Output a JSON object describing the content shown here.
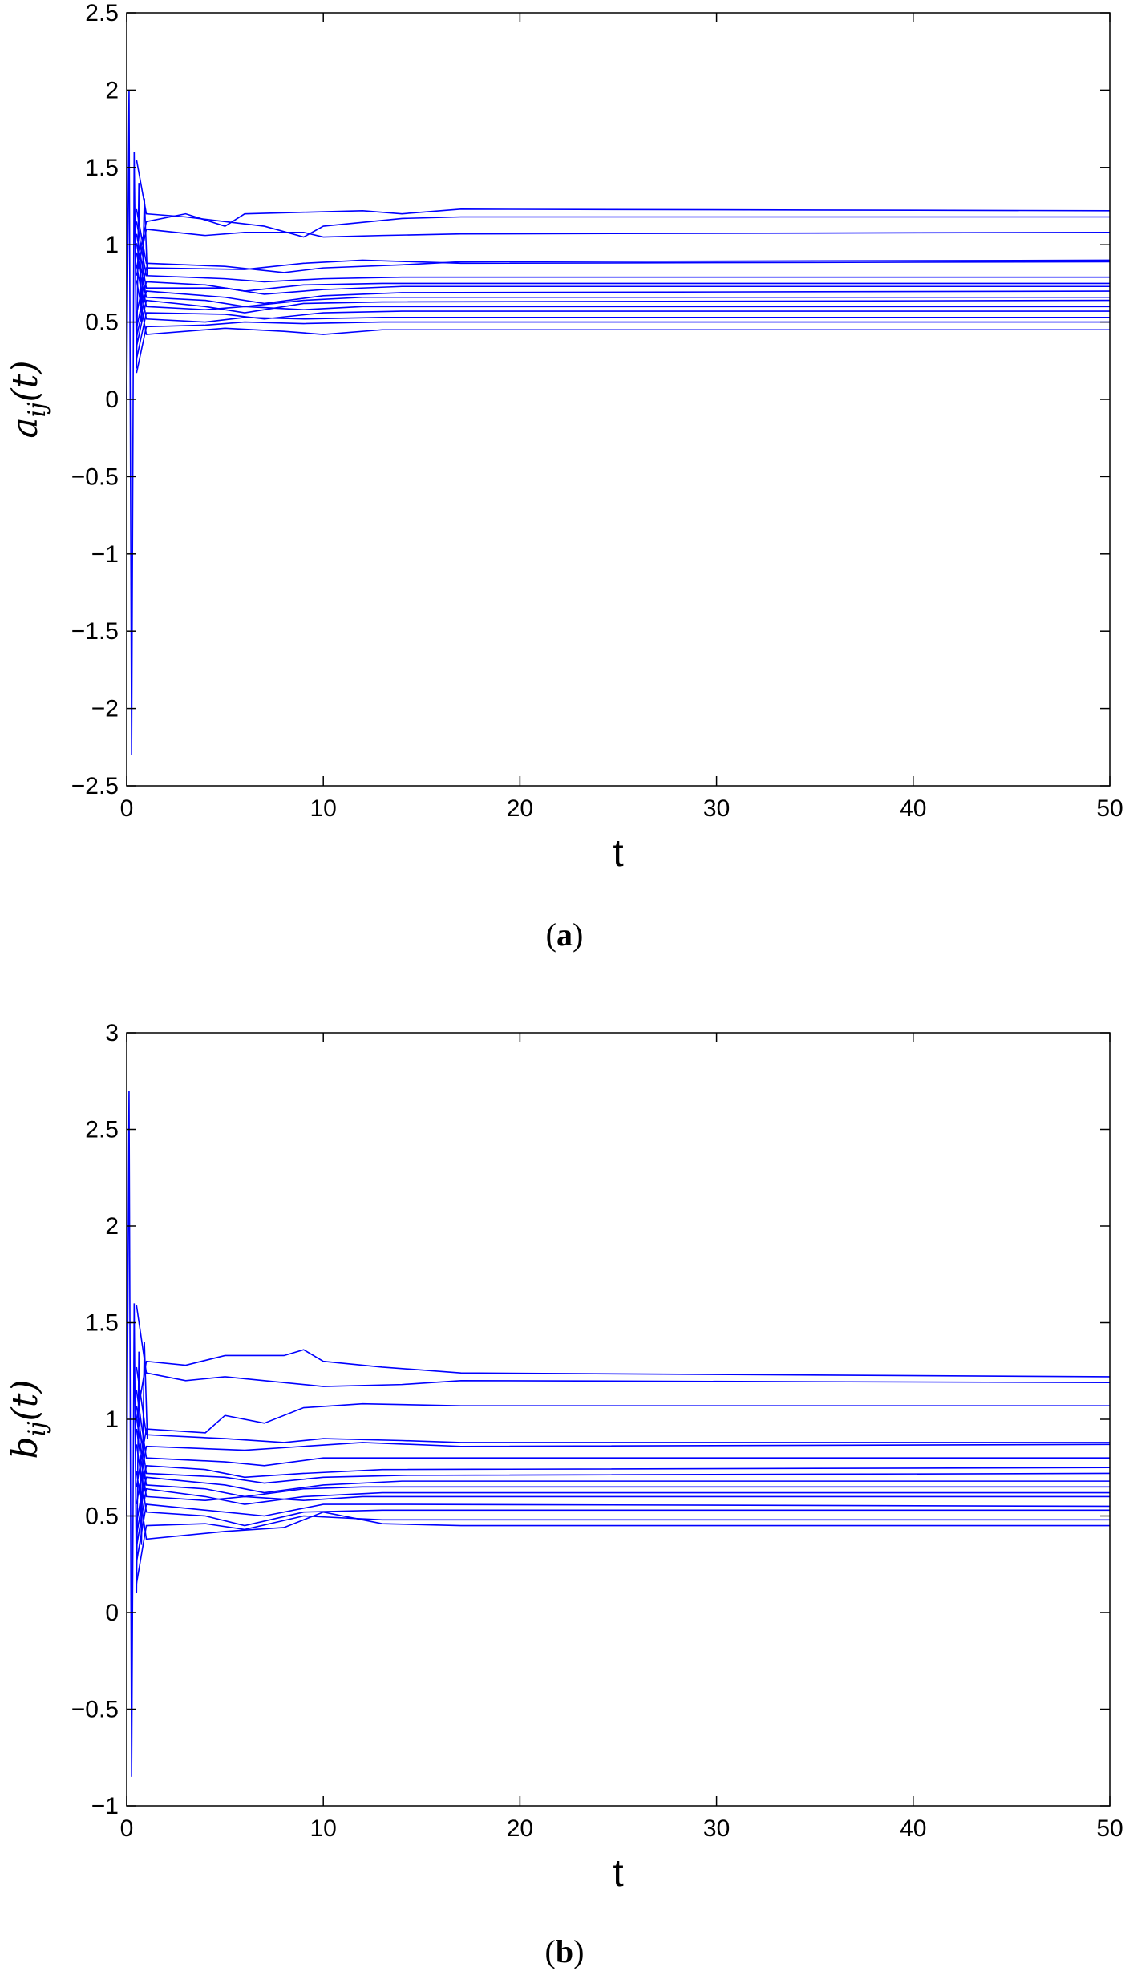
{
  "chart_data": [
    {
      "type": "line",
      "panel_label": "a",
      "xlabel": "t",
      "ylabel": "a_ij(t)",
      "ylabel_parts": {
        "base": "a",
        "sub": "ij",
        "arg": "(t)"
      },
      "xlim": [
        0,
        50
      ],
      "ylim": [
        -2.5,
        2.5
      ],
      "x_ticks": [
        0,
        10,
        20,
        30,
        40,
        50
      ],
      "y_ticks": [
        -2.5,
        -2,
        -1.5,
        -1,
        -0.5,
        0,
        0.5,
        1,
        1.5,
        2,
        2.5
      ],
      "x_tick_labels": [
        "0",
        "10",
        "20",
        "30",
        "40",
        "50"
      ],
      "y_tick_labels": [
        "−2.5",
        "−2",
        "−1.5",
        "−1",
        "−0.5",
        "0",
        "0.5",
        "1",
        "1.5",
        "2",
        "2.5"
      ],
      "color": "#0000ff",
      "grid": false,
      "initial_transient": {
        "x": [
          0,
          0.12,
          0.25,
          0.38,
          0.5,
          0.62,
          0.75,
          0.9,
          1.05
        ],
        "y": [
          0,
          2.0,
          -2.3,
          1.6,
          0.2,
          1.4,
          0.5,
          1.3,
          0.8
        ]
      },
      "series": [
        {
          "values": [
            [
              1,
              1.15
            ],
            [
              3,
              1.2
            ],
            [
              5,
              1.12
            ],
            [
              6,
              1.2
            ],
            [
              9,
              1.21
            ],
            [
              12,
              1.22
            ],
            [
              14,
              1.2
            ],
            [
              17,
              1.23
            ],
            [
              50,
              1.22
            ]
          ]
        },
        {
          "values": [
            [
              1,
              1.2
            ],
            [
              3,
              1.18
            ],
            [
              5,
              1.15
            ],
            [
              7,
              1.12
            ],
            [
              9,
              1.05
            ],
            [
              10,
              1.12
            ],
            [
              14,
              1.17
            ],
            [
              17,
              1.18
            ],
            [
              50,
              1.18
            ]
          ]
        },
        {
          "values": [
            [
              1,
              1.1
            ],
            [
              4,
              1.06
            ],
            [
              6,
              1.08
            ],
            [
              9,
              1.08
            ],
            [
              10,
              1.05
            ],
            [
              13,
              1.06
            ],
            [
              17,
              1.07
            ],
            [
              50,
              1.08
            ]
          ]
        },
        {
          "values": [
            [
              1,
              0.88
            ],
            [
              5,
              0.86
            ],
            [
              8,
              0.82
            ],
            [
              10,
              0.85
            ],
            [
              14,
              0.87
            ],
            [
              17,
              0.89
            ],
            [
              50,
              0.9
            ]
          ]
        },
        {
          "values": [
            [
              1,
              0.85
            ],
            [
              6,
              0.84
            ],
            [
              9,
              0.88
            ],
            [
              12,
              0.9
            ],
            [
              17,
              0.88
            ],
            [
              50,
              0.89
            ]
          ]
        },
        {
          "values": [
            [
              1,
              0.8
            ],
            [
              5,
              0.78
            ],
            [
              7,
              0.76
            ],
            [
              10,
              0.78
            ],
            [
              14,
              0.79
            ],
            [
              50,
              0.79
            ]
          ]
        },
        {
          "values": [
            [
              1,
              0.76
            ],
            [
              4,
              0.74
            ],
            [
              6,
              0.7
            ],
            [
              9,
              0.74
            ],
            [
              13,
              0.75
            ],
            [
              50,
              0.75
            ]
          ]
        },
        {
          "values": [
            [
              1,
              0.72
            ],
            [
              5,
              0.72
            ],
            [
              7,
              0.68
            ],
            [
              10,
              0.71
            ],
            [
              14,
              0.73
            ],
            [
              50,
              0.73
            ]
          ]
        },
        {
          "values": [
            [
              1,
              0.7
            ],
            [
              5,
              0.66
            ],
            [
              7,
              0.62
            ],
            [
              10,
              0.67
            ],
            [
              14,
              0.69
            ],
            [
              50,
              0.7
            ]
          ]
        },
        {
          "values": [
            [
              1,
              0.66
            ],
            [
              4,
              0.64
            ],
            [
              6,
              0.6
            ],
            [
              9,
              0.64
            ],
            [
              12,
              0.66
            ],
            [
              50,
              0.66
            ]
          ]
        },
        {
          "values": [
            [
              1,
              0.64
            ],
            [
              4,
              0.6
            ],
            [
              6,
              0.56
            ],
            [
              9,
              0.62
            ],
            [
              13,
              0.63
            ],
            [
              50,
              0.64
            ]
          ]
        },
        {
          "values": [
            [
              1,
              0.6
            ],
            [
              4,
              0.58
            ],
            [
              6,
              0.6
            ],
            [
              9,
              0.58
            ],
            [
              12,
              0.6
            ],
            [
              50,
              0.6
            ]
          ]
        },
        {
          "values": [
            [
              1,
              0.56
            ],
            [
              5,
              0.55
            ],
            [
              7,
              0.52
            ],
            [
              10,
              0.56
            ],
            [
              14,
              0.57
            ],
            [
              50,
              0.57
            ]
          ]
        },
        {
          "values": [
            [
              1,
              0.52
            ],
            [
              4,
              0.5
            ],
            [
              6,
              0.53
            ],
            [
              9,
              0.52
            ],
            [
              13,
              0.53
            ],
            [
              50,
              0.53
            ]
          ]
        },
        {
          "values": [
            [
              1,
              0.47
            ],
            [
              4,
              0.48
            ],
            [
              6,
              0.5
            ],
            [
              9,
              0.49
            ],
            [
              13,
              0.5
            ],
            [
              50,
              0.5
            ]
          ]
        },
        {
          "values": [
            [
              1,
              0.42
            ],
            [
              5,
              0.46
            ],
            [
              8,
              0.44
            ],
            [
              10,
              0.42
            ],
            [
              13,
              0.45
            ],
            [
              17,
              0.45
            ],
            [
              50,
              0.45
            ]
          ]
        }
      ]
    },
    {
      "type": "line",
      "panel_label": "b",
      "xlabel": "t",
      "ylabel": "b_ij(t)",
      "ylabel_parts": {
        "base": "b",
        "sub": "ij",
        "arg": "(t)"
      },
      "xlim": [
        0,
        50
      ],
      "ylim": [
        -1,
        3
      ],
      "x_ticks": [
        0,
        10,
        20,
        30,
        40,
        50
      ],
      "y_ticks": [
        -1,
        -0.5,
        0,
        0.5,
        1,
        1.5,
        2,
        2.5,
        3
      ],
      "x_tick_labels": [
        "0",
        "10",
        "20",
        "30",
        "40",
        "50"
      ],
      "y_tick_labels": [
        "−1",
        "−0.5",
        "0",
        "0.5",
        "1",
        "1.5",
        "2",
        "2.5",
        "3"
      ],
      "color": "#0000ff",
      "grid": false,
      "initial_transient": {
        "x": [
          0,
          0.12,
          0.25,
          0.38,
          0.5,
          0.62,
          0.75,
          0.9,
          1.05
        ],
        "y": [
          0.5,
          2.7,
          -0.85,
          1.6,
          0.1,
          1.35,
          0.35,
          1.4,
          0.9
        ]
      },
      "series": [
        {
          "values": [
            [
              1,
              1.3
            ],
            [
              3,
              1.28
            ],
            [
              5,
              1.33
            ],
            [
              8,
              1.33
            ],
            [
              9,
              1.36
            ],
            [
              10,
              1.3
            ],
            [
              13,
              1.27
            ],
            [
              17,
              1.24
            ],
            [
              50,
              1.22
            ]
          ]
        },
        {
          "values": [
            [
              1,
              1.24
            ],
            [
              3,
              1.2
            ],
            [
              5,
              1.22
            ],
            [
              7,
              1.2
            ],
            [
              10,
              1.17
            ],
            [
              14,
              1.18
            ],
            [
              17,
              1.2
            ],
            [
              50,
              1.19
            ]
          ]
        },
        {
          "values": [
            [
              1,
              0.95
            ],
            [
              4,
              0.93
            ],
            [
              5,
              1.02
            ],
            [
              7,
              0.98
            ],
            [
              9,
              1.06
            ],
            [
              12,
              1.08
            ],
            [
              17,
              1.07
            ],
            [
              50,
              1.07
            ]
          ]
        },
        {
          "values": [
            [
              1,
              0.92
            ],
            [
              5,
              0.9
            ],
            [
              8,
              0.88
            ],
            [
              10,
              0.9
            ],
            [
              14,
              0.89
            ],
            [
              17,
              0.88
            ],
            [
              50,
              0.88
            ]
          ]
        },
        {
          "values": [
            [
              1,
              0.86
            ],
            [
              6,
              0.84
            ],
            [
              9,
              0.86
            ],
            [
              12,
              0.88
            ],
            [
              17,
              0.86
            ],
            [
              50,
              0.87
            ]
          ]
        },
        {
          "values": [
            [
              1,
              0.8
            ],
            [
              5,
              0.78
            ],
            [
              7,
              0.76
            ],
            [
              10,
              0.8
            ],
            [
              14,
              0.8
            ],
            [
              50,
              0.8
            ]
          ]
        },
        {
          "values": [
            [
              1,
              0.76
            ],
            [
              4,
              0.74
            ],
            [
              6,
              0.7
            ],
            [
              9,
              0.72
            ],
            [
              13,
              0.74
            ],
            [
              50,
              0.75
            ]
          ]
        },
        {
          "values": [
            [
              1,
              0.72
            ],
            [
              5,
              0.7
            ],
            [
              7,
              0.67
            ],
            [
              10,
              0.7
            ],
            [
              14,
              0.71
            ],
            [
              50,
              0.72
            ]
          ]
        },
        {
          "values": [
            [
              1,
              0.7
            ],
            [
              5,
              0.66
            ],
            [
              7,
              0.62
            ],
            [
              10,
              0.66
            ],
            [
              14,
              0.68
            ],
            [
              50,
              0.68
            ]
          ]
        },
        {
          "values": [
            [
              1,
              0.66
            ],
            [
              4,
              0.64
            ],
            [
              6,
              0.6
            ],
            [
              9,
              0.64
            ],
            [
              12,
              0.65
            ],
            [
              50,
              0.65
            ]
          ]
        },
        {
          "values": [
            [
              1,
              0.64
            ],
            [
              4,
              0.6
            ],
            [
              6,
              0.56
            ],
            [
              9,
              0.6
            ],
            [
              13,
              0.62
            ],
            [
              50,
              0.62
            ]
          ]
        },
        {
          "values": [
            [
              1,
              0.6
            ],
            [
              4,
              0.58
            ],
            [
              6,
              0.6
            ],
            [
              9,
              0.58
            ],
            [
              12,
              0.6
            ],
            [
              50,
              0.6
            ]
          ]
        },
        {
          "values": [
            [
              1,
              0.56
            ],
            [
              5,
              0.52
            ],
            [
              7,
              0.5
            ],
            [
              10,
              0.56
            ],
            [
              14,
              0.56
            ],
            [
              50,
              0.55
            ]
          ]
        },
        {
          "values": [
            [
              1,
              0.52
            ],
            [
              4,
              0.5
            ],
            [
              6,
              0.45
            ],
            [
              9,
              0.52
            ],
            [
              13,
              0.53
            ],
            [
              50,
              0.53
            ]
          ]
        },
        {
          "values": [
            [
              1,
              0.45
            ],
            [
              4,
              0.46
            ],
            [
              6,
              0.43
            ],
            [
              9,
              0.5
            ],
            [
              13,
              0.48
            ],
            [
              50,
              0.48
            ]
          ]
        },
        {
          "values": [
            [
              1,
              0.38
            ],
            [
              5,
              0.42
            ],
            [
              8,
              0.44
            ],
            [
              10,
              0.52
            ],
            [
              13,
              0.46
            ],
            [
              17,
              0.45
            ],
            [
              50,
              0.45
            ]
          ]
        }
      ]
    }
  ]
}
